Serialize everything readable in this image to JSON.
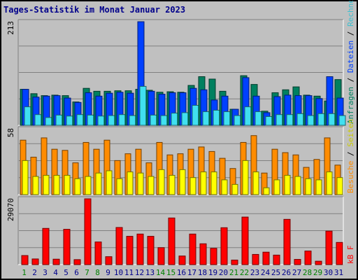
{
  "title": "Tages-Statistik im Monat Januar 2023",
  "chart_data": {
    "type": "bar",
    "categories": [
      "1",
      "2",
      "3",
      "4",
      "5",
      "6",
      "7",
      "8",
      "9",
      "10",
      "11",
      "12",
      "13",
      "14",
      "15",
      "16",
      "17",
      "18",
      "19",
      "20",
      "21",
      "22",
      "23",
      "24",
      "25",
      "26",
      "27",
      "28",
      "29",
      "30",
      "31"
    ],
    "weekend_days": [
      1,
      7,
      8,
      14,
      15,
      21,
      22,
      28,
      29
    ],
    "colors": {
      "weekday_label": "#00008b",
      "weekend_label": "#008000"
    },
    "panels": [
      {
        "id": "top",
        "max_label": "213",
        "ymax": 213,
        "series": [
          {
            "name": "Anfragen",
            "color": "#00805f",
            "values": [
              74,
              65,
              61,
              62,
              61,
              48,
              76,
              70,
              70,
              71,
              71,
              74,
              72,
              68,
              69,
              68,
              82,
              100,
              95,
              70,
              33,
              102,
              84,
              29,
              67,
              73,
              79,
              62,
              60,
              50,
              94
            ]
          },
          {
            "name": "Dateien",
            "color": "#0040ff",
            "values": [
              74,
              58,
              60,
              61,
              56,
              47,
              67,
              60,
              66,
              68,
              66,
              213,
              70,
              64,
              67,
              67,
              76,
              73,
              52,
              60,
              33,
              98,
              60,
              26,
              59,
              62,
              61,
              61,
              55,
              100,
              56
            ]
          },
          {
            "name": "Rechner (IP-Adressen)",
            "color": "#40e0f0",
            "values": [
              38,
              22,
              16,
              21,
              19,
              22,
              21,
              19,
              20,
              22,
              20,
              80,
              21,
              20,
              25,
              26,
              41,
              28,
              31,
              28,
              20,
              38,
              28,
              18,
              22,
              22,
              24,
              20,
              24,
              24,
              20
            ]
          }
        ]
      },
      {
        "id": "middle",
        "max_label": "58",
        "ymax": 58,
        "series": [
          {
            "name": "Besuche",
            "color": "#ff8c00",
            "values": [
              48,
              33,
              50,
              40,
              39,
              28,
              46,
              40,
              48,
              30,
              36,
              40,
              28,
              46,
              35,
              36,
              40,
              42,
              38,
              32,
              23,
              46,
              52,
              19,
              40,
              37,
              35,
              24,
              31,
              50,
              26
            ]
          },
          {
            "name": "Seiten",
            "color": "#ffff00",
            "values": [
              30,
              16,
              17,
              17,
              17,
              14,
              16,
              19,
              21,
              14,
              20,
              19,
              16,
              22,
              17,
              22,
              15,
              20,
              20,
              13,
              9,
              30,
              20,
              6,
              13,
              17,
              16,
              14,
              13,
              20,
              15
            ]
          }
        ]
      },
      {
        "id": "bottom",
        "max_label": "29070",
        "ymax": 29070,
        "series": [
          {
            "name": "kB F",
            "color": "#ff0000",
            "values": [
              4000,
              2500,
              16000,
              2400,
              15600,
              2200,
              29070,
              10000,
              3500,
              16400,
              12500,
              13500,
              12500,
              7500,
              20600,
              3800,
              13500,
              9200,
              7200,
              16300,
              2000,
              21000,
              4500,
              5500,
              4200,
              20000,
              2300,
              6000,
              1500,
              14800,
              9800
            ]
          }
        ]
      }
    ],
    "right_label_top": {
      "parts": [
        {
          "text": "Anfragen",
          "color": "#00805f"
        },
        {
          "text": " / ",
          "color": "#000000"
        },
        {
          "text": "Dateien",
          "color": "#0040ff"
        },
        {
          "text": " / ",
          "color": "#000000"
        },
        {
          "text": "Rechner (IP-Adressen)",
          "color": "#40c0d0"
        }
      ]
    },
    "right_label_middle": {
      "parts": [
        {
          "text": "Besuche",
          "color": "#ff8c00"
        },
        {
          "text": " / ",
          "color": "#000000"
        },
        {
          "text": "Seiten",
          "color": "#cccc00"
        }
      ]
    },
    "right_label_bottom": {
      "parts": [
        {
          "text": "kB F",
          "color": "#ff0000"
        }
      ]
    }
  }
}
